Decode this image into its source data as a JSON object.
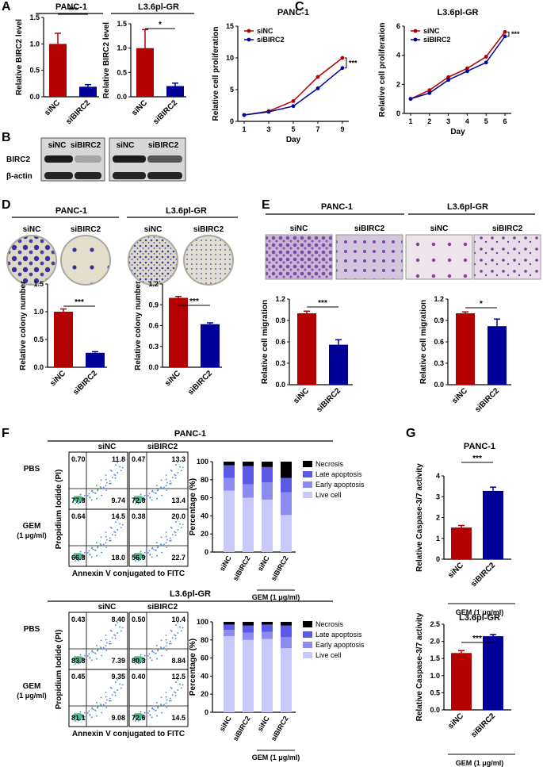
{
  "panels": {
    "A": {
      "label": "A",
      "charts": [
        {
          "type": "bar",
          "title": "PANC-1",
          "categories": [
            "siNC",
            "siBIRC2"
          ],
          "values": [
            1.0,
            0.19
          ],
          "errors": [
            0.2,
            0.04
          ],
          "ylim": [
            0,
            1.5
          ],
          "ticks": [
            "0.0",
            "0.5",
            "1.0",
            "1.5"
          ],
          "ylabel": "Relative BIRC2 level",
          "sig": "***",
          "colors": [
            "#b30000",
            "#000099"
          ]
        },
        {
          "type": "bar",
          "title": "L3.6pl-GR",
          "categories": [
            "siNC",
            "siBIRC2"
          ],
          "values": [
            1.0,
            0.22
          ],
          "errors": [
            0.38,
            0.06
          ],
          "ylim": [
            0,
            1.5
          ],
          "ticks": [
            "0.0",
            "0.5",
            "1.0",
            "1.5"
          ],
          "ylabel": "Relative BIRC2 level",
          "sig": "*",
          "colors": [
            "#b30000",
            "#000099"
          ]
        }
      ]
    },
    "B": {
      "label": "B",
      "groups": [
        "siNC",
        "siBIRC2",
        "siNC",
        "siBIRC2"
      ],
      "rows": [
        "BIRC2",
        "β-actin"
      ]
    },
    "C": {
      "label": "C",
      "charts": [
        {
          "type": "line",
          "title": "PANC-1",
          "xlabel": "Day",
          "ylabel": "Relative cell proliferation",
          "x": [
            1,
            3,
            5,
            7,
            9
          ],
          "ylim": [
            0,
            15
          ],
          "ticks": [
            "0",
            "5",
            "10",
            "15"
          ],
          "series": [
            {
              "name": "siNC",
              "values": [
                1.0,
                1.6,
                3.2,
                7.0,
                10.0
              ],
              "color": "#b30000"
            },
            {
              "name": "siBIRC2",
              "values": [
                1.0,
                1.5,
                2.4,
                5.2,
                8.4
              ],
              "color": "#000099"
            }
          ],
          "sig": "***"
        },
        {
          "type": "line",
          "title": "L3.6pl-GR",
          "xlabel": "Day",
          "ylabel": "Relative cell proliferation",
          "x": [
            1,
            2,
            3,
            4,
            5,
            6
          ],
          "ylim": [
            0,
            6
          ],
          "ticks": [
            "0",
            "2",
            "4",
            "6"
          ],
          "series": [
            {
              "name": "siNC",
              "values": [
                1.0,
                1.6,
                2.5,
                3.1,
                3.9,
                5.6
              ],
              "color": "#b30000"
            },
            {
              "name": "siBIRC2",
              "values": [
                1.0,
                1.4,
                2.3,
                2.9,
                3.5,
                5.3
              ],
              "color": "#000099"
            }
          ],
          "sig": "***"
        }
      ]
    },
    "D": {
      "label": "D",
      "titles": [
        "PANC-1",
        "L3.6pl-GR"
      ],
      "dish_labels": [
        "siNC",
        "siBIRC2",
        "siNC",
        "siBIRC2"
      ],
      "charts": [
        {
          "type": "bar",
          "categories": [
            "siNC",
            "siBIRC2"
          ],
          "values": [
            1.0,
            0.26
          ],
          "errors": [
            0.05,
            0.02
          ],
          "ylim": [
            0,
            1.5
          ],
          "ticks": [
            "0.0",
            "0.5",
            "1.0",
            "1.5"
          ],
          "ylabel": "Relative colony number",
          "sig": "***",
          "colors": [
            "#b30000",
            "#000099"
          ]
        },
        {
          "type": "bar",
          "categories": [
            "siNC",
            "siBIRC2"
          ],
          "values": [
            1.0,
            0.62
          ],
          "errors": [
            0.02,
            0.02
          ],
          "ylim": [
            0,
            1.2
          ],
          "ticks": [
            "0.0",
            "0.3",
            "0.6",
            "0.9",
            "1.2"
          ],
          "ylabel": "Relative colony number",
          "sig": "***",
          "colors": [
            "#b30000",
            "#000099"
          ]
        }
      ]
    },
    "E": {
      "label": "E",
      "titles": [
        "PANC-1",
        "L3.6pl-GR"
      ],
      "image_labels": [
        "siNC",
        "siBIRC2",
        "siNC",
        "siBIRC2"
      ],
      "charts": [
        {
          "type": "bar",
          "categories": [
            "siNC",
            "siBIRC2"
          ],
          "values": [
            1.0,
            0.56
          ],
          "errors": [
            0.03,
            0.07
          ],
          "ylim": [
            0,
            1.2
          ],
          "ticks": [
            "0.0",
            "0.3",
            "0.6",
            "0.9",
            "1.2"
          ],
          "ylabel": "Relative cell migration",
          "sig": "***",
          "colors": [
            "#b30000",
            "#000099"
          ]
        },
        {
          "type": "bar",
          "categories": [
            "siNC",
            "siBIRC2"
          ],
          "values": [
            1.0,
            0.82
          ],
          "errors": [
            0.02,
            0.1
          ],
          "ylim": [
            0,
            1.2
          ],
          "ticks": [
            "0.0",
            "0.3",
            "0.6",
            "0.9",
            "1.2"
          ],
          "ylabel": "Relative cell migration",
          "sig": "*",
          "colors": [
            "#b30000",
            "#000099"
          ]
        }
      ]
    },
    "F": {
      "label": "F",
      "legend": [
        "Necrosis",
        "Late apoptosis",
        "Early apoptosis",
        "Live cell"
      ],
      "legend_colors": [
        "#000000",
        "#5a5ae6",
        "#8c8cf0",
        "#c8c8fa"
      ],
      "xlabel_flow": "Annexin V conjugated to FITC",
      "ylabel_flow": "Propidium Iodide (PI)",
      "ylabel_bar": "Percentage (%)",
      "bar_ticks": [
        "0",
        "20",
        "40",
        "60",
        "80",
        "100"
      ],
      "bar_categories": [
        "siNC",
        "siBIRC2",
        "siNC",
        "siBIRC2"
      ],
      "gem_label": "GEM (1 μg/ml)",
      "row_labels": [
        "PBS",
        "GEM",
        "(1 μg/ml)"
      ],
      "col_labels": [
        "siNC",
        "siBIRC2"
      ],
      "sets": [
        {
          "title": "PANC-1",
          "quadrants": [
            [
              "0.70",
              "11.8",
              "77.8",
              "9.74"
            ],
            [
              "0.47",
              "13.3",
              "72.8",
              "13.4"
            ],
            [
              "0.64",
              "14.5",
              "66.8",
              "18.0"
            ],
            [
              "0.38",
              "20.0",
              "56.9",
              "22.7"
            ]
          ],
          "bars": [
            {
              "live": 68,
              "early": 14,
              "late": 14,
              "nec": 4
            },
            {
              "live": 60,
              "early": 15,
              "late": 20,
              "nec": 5
            },
            {
              "live": 58,
              "early": 19,
              "late": 17,
              "nec": 6
            },
            {
              "live": 41,
              "early": 25,
              "late": 16,
              "nec": 18
            }
          ]
        },
        {
          "title": "L3.6pl-GR",
          "quadrants": [
            [
              "0.43",
              "8.40",
              "83.8",
              "7.39"
            ],
            [
              "0.50",
              "10.4",
              "80.3",
              "8.84"
            ],
            [
              "0.45",
              "9.35",
              "81.1",
              "9.08"
            ],
            [
              "0.40",
              "12.5",
              "72.6",
              "14.5"
            ]
          ],
          "bars": [
            {
              "live": 84,
              "early": 7,
              "late": 6,
              "nec": 3
            },
            {
              "live": 80,
              "early": 8,
              "late": 8,
              "nec": 4
            },
            {
              "live": 81,
              "early": 8,
              "late": 8,
              "nec": 3
            },
            {
              "live": 71,
              "early": 12,
              "late": 13,
              "nec": 4
            }
          ]
        }
      ]
    },
    "G": {
      "label": "G",
      "charts": [
        {
          "type": "bar",
          "title": "PANC-1",
          "categories": [
            "siNC",
            "siBIRC2"
          ],
          "values": [
            1.52,
            3.28
          ],
          "errors": [
            0.1,
            0.18
          ],
          "ylim": [
            0,
            4
          ],
          "ticks": [
            "0",
            "1",
            "2",
            "3",
            "4"
          ],
          "ylabel": "Relative Caspase-3/7 activity",
          "sig": "***",
          "footer": "GEM (1 μg/ml)",
          "colors": [
            "#b30000",
            "#000099"
          ]
        },
        {
          "type": "bar",
          "title": "L3.6pl-GR",
          "categories": [
            "siNC",
            "siBIRC2"
          ],
          "values": [
            1.66,
            2.15
          ],
          "errors": [
            0.07,
            0.05
          ],
          "ylim": [
            0,
            2.5
          ],
          "ticks": [
            "0.0",
            "0.5",
            "1.0",
            "1.5",
            "2.0",
            "2.5"
          ],
          "ylabel": "Relative Caspase-3/7 activity",
          "sig": "***",
          "footer": "GEM (1 μg/ml)",
          "colors": [
            "#b30000",
            "#000099"
          ]
        }
      ]
    }
  }
}
